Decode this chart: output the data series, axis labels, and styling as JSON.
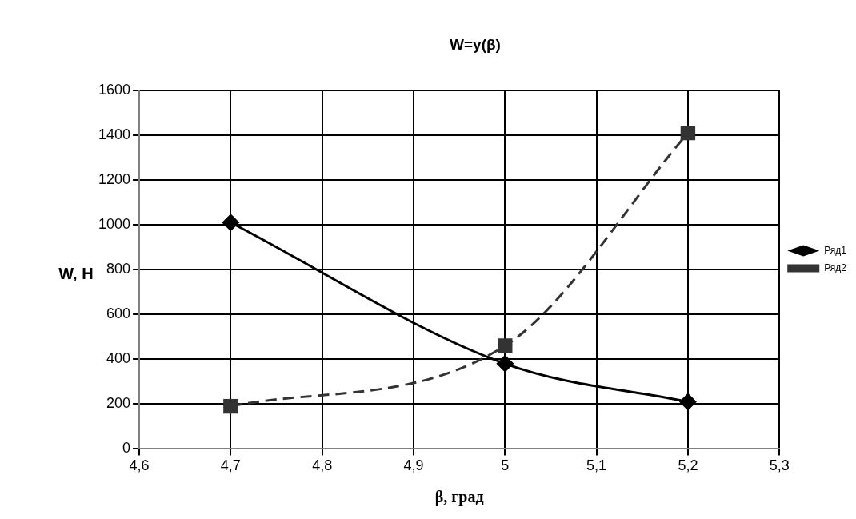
{
  "chart_data": {
    "type": "line",
    "title": "W=y(β)",
    "xlabel": "β, град",
    "ylabel": "W, H",
    "x": [
      4.7,
      5.0,
      5.2
    ],
    "series": [
      {
        "name": "Ряд1",
        "color": "#000000",
        "values": [
          1010,
          380,
          210
        ],
        "marker": "diamond",
        "line_style": "solid"
      },
      {
        "name": "Ряд2",
        "color": "#333333",
        "values": [
          190,
          460,
          1410
        ],
        "marker": "square",
        "line_style": "dashed"
      }
    ],
    "xlim": [
      4.6,
      5.3
    ],
    "xticks": [
      {
        "value": 4.6,
        "label": "4,6"
      },
      {
        "value": 4.7,
        "label": "4,7"
      },
      {
        "value": 4.8,
        "label": "4,8"
      },
      {
        "value": 4.9,
        "label": "4,9"
      },
      5,
      {
        "value": 5.1,
        "label": "5,1"
      },
      {
        "value": 5.2,
        "label": "5,2"
      },
      {
        "value": 5.3,
        "label": "5,3"
      }
    ],
    "ylim": [
      0,
      1600
    ],
    "yticks": [
      0,
      200,
      400,
      600,
      800,
      1000,
      1200,
      1400,
      1600
    ],
    "grid": true,
    "legend": "right"
  }
}
